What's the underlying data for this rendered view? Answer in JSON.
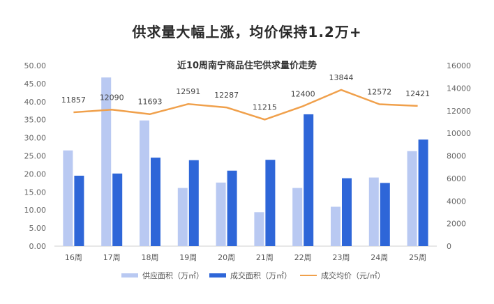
{
  "headline": "供求量大幅上涨，均价保持1.2万+",
  "chart_data": {
    "type": "bar",
    "title": "近10周南宁商品住宅供求量价走势",
    "categories": [
      "16周",
      "17周",
      "18周",
      "19周",
      "20周",
      "21周",
      "22周",
      "23周",
      "24周",
      "25周"
    ],
    "series": [
      {
        "name": "供应面积（万㎡）",
        "type": "bar",
        "axis": "left",
        "color": "#b9c9f2",
        "values": [
          26.5,
          46.7,
          34.8,
          16.1,
          17.6,
          9.4,
          16.1,
          10.9,
          19.0,
          26.3
        ]
      },
      {
        "name": "成交面积（万㎡）",
        "type": "bar",
        "axis": "left",
        "color": "#2e66d8",
        "values": [
          19.5,
          20.1,
          24.5,
          23.8,
          20.9,
          23.9,
          36.5,
          18.8,
          17.5,
          29.5
        ]
      },
      {
        "name": "成交均价（元/㎡）",
        "type": "line",
        "axis": "right",
        "color": "#f0a04b",
        "values": [
          11857,
          12090,
          11693,
          12591,
          12287,
          11215,
          12400,
          13844,
          12572,
          12421
        ]
      }
    ],
    "y_left": {
      "min": 0,
      "max": 50,
      "ticks": [
        "0.00",
        "5.00",
        "10.00",
        "15.00",
        "20.00",
        "25.00",
        "30.00",
        "35.00",
        "40.00",
        "45.00",
        "50.00"
      ]
    },
    "y_right": {
      "min": 0,
      "max": 16000,
      "ticks": [
        "0",
        "2000",
        "4000",
        "6000",
        "8000",
        "10000",
        "12000",
        "14000",
        "16000"
      ]
    },
    "grid": false,
    "legend_position": "bottom"
  }
}
